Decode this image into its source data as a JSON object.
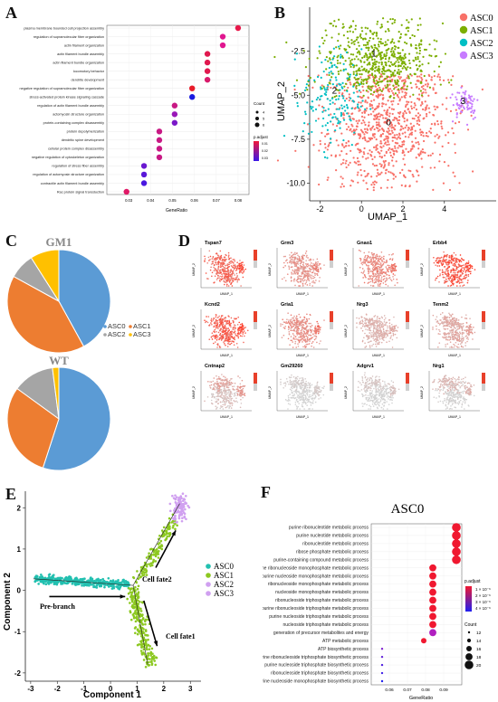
{
  "labels": {
    "A": "A",
    "B": "B",
    "C": "C",
    "D": "D",
    "E": "E",
    "F": "F"
  },
  "panelA": {
    "xlabel": "GeneRatio",
    "legend_count_title": "Count",
    "legend_count_values": [
      "4",
      "5",
      "6"
    ],
    "legend_padj_title": "p.adjust",
    "legend_padj_values": [
      "0.01",
      "0.02",
      "0.03"
    ]
  },
  "chart_data": [
    {
      "id": "A",
      "type": "scatter",
      "xlabel": "GeneRatio",
      "xlim": [
        0.02,
        0.085
      ],
      "xticks": [
        "0.03",
        "0.04",
        "0.05",
        "0.06",
        "0.07",
        "0.08"
      ],
      "terms": [
        "plasma membrane bounded cell projection assembly",
        "regulation of supramolecular fiber organization",
        "actin filament organization",
        "actin filament bundle assembly",
        "actin filament bundle organization",
        "locomotory behavior",
        "dendrite development",
        "negative regulation of supramolecular fiber organization",
        "stress-activated protein kinase signaling cascade",
        "regulation of actin filament bundle assembly",
        "actomyosin structure organization",
        "protein-containing complex disassembly",
        "protein depolymerization",
        "dendritic spine development",
        "cellular protein complex disassembly",
        "negative regulation of cytoskeleton organization",
        "regulation of stress fiber assembly",
        "regulation of actomyosin structure organization",
        "contractile actin filament bundle assembly",
        "Rac protein signal transduction"
      ],
      "values": [
        0.08,
        0.073,
        0.073,
        0.066,
        0.066,
        0.066,
        0.066,
        0.059,
        0.059,
        0.051,
        0.051,
        0.051,
        0.044,
        0.044,
        0.044,
        0.044,
        0.037,
        0.037,
        0.037,
        0.029
      ],
      "colors": [
        "#e8184a",
        "#e0168f",
        "#e0168f",
        "#e0184e",
        "#e0184e",
        "#e0184e",
        "#d81a6a",
        "#e81c2a",
        "#1a1ae0",
        "#c81884",
        "#9a18b8",
        "#7a18c8",
        "#c81884",
        "#c81884",
        "#c81884",
        "#c81884",
        "#6a18d0",
        "#5a18d8",
        "#4a18e0",
        "#e01866"
      ]
    },
    {
      "id": "B",
      "type": "scatter",
      "xlabel": "UMAP_1",
      "ylabel": "UMAP_2",
      "xticks": [
        "-2",
        "0",
        "2",
        "4"
      ],
      "yticks": [
        "-2.5",
        "-5.0",
        "-7.5",
        "-10.0"
      ],
      "series": [
        {
          "name": "ASC0",
          "color": "#f87168"
        },
        {
          "name": "ASC1",
          "color": "#7cae00"
        },
        {
          "name": "ASC2",
          "color": "#00bfc4"
        },
        {
          "name": "ASC3",
          "color": "#c77cff"
        }
      ],
      "cluster_labels": [
        "0",
        "1",
        "2",
        "3"
      ]
    },
    {
      "id": "C-GM1",
      "type": "pie",
      "title": "GM1",
      "categories": [
        "ASC0",
        "ASC1",
        "ASC2",
        "ASC3"
      ],
      "values": [
        42,
        41,
        8,
        9
      ]
    },
    {
      "id": "C-WT",
      "type": "pie",
      "title": "WT",
      "categories": [
        "ASC0",
        "ASC1",
        "ASC2",
        "ASC3"
      ],
      "values": [
        55,
        30,
        13,
        2
      ]
    },
    {
      "id": "D",
      "type": "scatter",
      "genes": [
        "Tspan7",
        "Grm3",
        "Gnao1",
        "Erbb4",
        "Kcnd2",
        "Gria1",
        "Nrg3",
        "Tenm2",
        "Cntnap2",
        "Gm29260",
        "Adgrv1",
        "Nrg1"
      ],
      "xlabel": "UMAP_1",
      "ylabel": "UMAP_2"
    },
    {
      "id": "E",
      "type": "scatter",
      "xlabel": "Component 1",
      "ylabel": "Component 2",
      "xticks": [
        "-3",
        "-2",
        "-1",
        "0",
        "1",
        "2",
        "3"
      ],
      "yticks": [
        "-2",
        "-1",
        "0",
        "1",
        "2"
      ],
      "series": [
        {
          "name": "ASC0",
          "color": "#22c0b0"
        },
        {
          "name": "ASC1",
          "color": "#8cc820"
        },
        {
          "name": "ASC2",
          "color": "#d0a0f0"
        },
        {
          "name": "ASC3",
          "color": "#d0a0f0"
        }
      ],
      "annotations": [
        "Pre-branch",
        "Cell fate2",
        "Cell fate1"
      ]
    },
    {
      "id": "F",
      "type": "scatter",
      "title": "ASC0",
      "xlabel": "GeneRatio",
      "xlim": [
        0.05,
        0.1
      ],
      "xticks": [
        "0.06",
        "0.07",
        "0.08",
        "0.09"
      ],
      "terms": [
        "purine ribonucleotide metabolic process",
        "purine nucleotide metabolic process",
        "ribonucleotide metabolic process",
        "ribose phosphate metabolic process",
        "purine-containing compound metabolic process",
        "purine ribonucleoside monophosphate metabolic process",
        "purine nucleoside monophosphate metabolic process",
        "ribonucleoside monophosphate metabolic process",
        "nucleoside monophosphate metabolic process",
        "ribonucleoside triphosphate metabolic process",
        "purine ribonucleoside triphosphate metabolic process",
        "purine nucleoside triphosphate metabolic process",
        "nucleoside triphosphate metabolic process",
        "generation of precursor metabolites and energy",
        "ATP metabolic process",
        "ATP biosynthetic process",
        "purine ribonucleoside triphosphate biosynthetic process",
        "purine nucleoside triphosphate biosynthetic process",
        "ribonucleoside triphosphate biosynthetic process",
        "purine nucleoside monophosphate biosynthetic process"
      ],
      "values": [
        0.097,
        0.097,
        0.097,
        0.097,
        0.097,
        0.084,
        0.084,
        0.084,
        0.084,
        0.084,
        0.084,
        0.084,
        0.084,
        0.084,
        0.079,
        0.056,
        0.056,
        0.056,
        0.056,
        0.056
      ],
      "counts": [
        20,
        20,
        20,
        20,
        20,
        18,
        18,
        18,
        18,
        18,
        18,
        18,
        18,
        18,
        16,
        12,
        12,
        12,
        12,
        12
      ],
      "colors": [
        "#f01830",
        "#f01830",
        "#f01830",
        "#f01830",
        "#f01830",
        "#f01830",
        "#f01830",
        "#f01830",
        "#f01830",
        "#f01830",
        "#f01830",
        "#f01830",
        "#f01830",
        "#b020c0",
        "#f01830",
        "#8020d0",
        "#6020d8",
        "#5020e0",
        "#4020e8",
        "#2020f0"
      ]
    }
  ],
  "panelB": {
    "legend": [
      "ASC0",
      "ASC1",
      "ASC2",
      "ASC3"
    ],
    "xlabel": "UMAP_1",
    "ylabel": "UMAP_2"
  },
  "panelC": {
    "title1": "GM1",
    "title2": "WT",
    "legend": [
      "ASC0",
      "ASC1",
      "ASC2",
      "ASC3"
    ]
  },
  "panelE": {
    "legend": [
      "ASC0",
      "ASC1",
      "ASC2",
      "ASC3"
    ],
    "xlabel": "Component 1",
    "ylabel": "Component 2",
    "pre": "Pre-branch",
    "fate2": "Cell fate2",
    "fate1": "Cell fate1"
  },
  "panelF": {
    "title": "ASC0",
    "xlabel": "GeneRatio",
    "padj_title": "p.adjust",
    "padj_values": [
      "1 × 10⁻⁶",
      "2 × 10⁻⁶",
      "3 × 10⁻⁶",
      "4 × 10⁻⁶"
    ],
    "count_title": "Count",
    "count_values": [
      "12",
      "14",
      "16",
      "18",
      "20"
    ]
  },
  "panelD": {
    "xlabel": "UMAP_1",
    "ylabel": "UMAP_2"
  }
}
